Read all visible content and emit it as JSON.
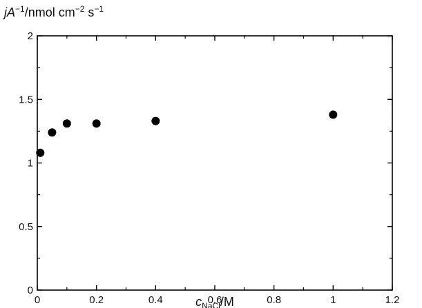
{
  "chart_data": {
    "type": "scatter",
    "ylabel": {
      "var": "jA",
      "sup1": "−1",
      "unit_pre": "/nmol cm",
      "sup2": "−2",
      "unit_mid": " s",
      "sup3": "−1"
    },
    "xlabel": {
      "var": "c",
      "sub": "NaCl",
      "unit": "/M"
    },
    "xlim": [
      0,
      1.2
    ],
    "ylim": [
      0,
      2
    ],
    "xticks": [
      "0",
      "0.2",
      "0.4",
      "0.6",
      "0.8",
      "1",
      "1.2"
    ],
    "yticks": [
      "0",
      "0.5",
      "1",
      "1.5",
      "2"
    ],
    "grid": false,
    "marker_color": "#000000",
    "points": [
      {
        "x": 0.01,
        "y": 1.08
      },
      {
        "x": 0.05,
        "y": 1.24
      },
      {
        "x": 0.1,
        "y": 1.31
      },
      {
        "x": 0.2,
        "y": 1.31
      },
      {
        "x": 0.4,
        "y": 1.33
      },
      {
        "x": 1.0,
        "y": 1.38
      }
    ]
  }
}
